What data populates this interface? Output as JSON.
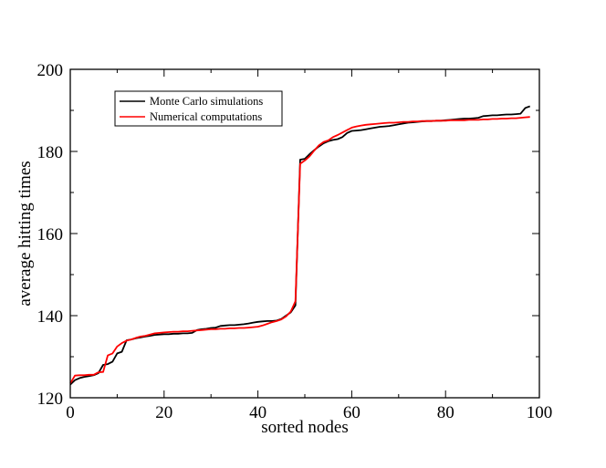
{
  "chart_data": {
    "type": "line",
    "title": "",
    "xlabel": "sorted nodes",
    "ylabel": "average hitting times",
    "xlim": [
      0,
      100
    ],
    "ylim": [
      120,
      200
    ],
    "xticks": [
      0,
      20,
      40,
      60,
      80,
      100
    ],
    "yticks": [
      120,
      140,
      160,
      180,
      200
    ],
    "grid": false,
    "legend_position": "top-left",
    "series": [
      {
        "name": "Monte Carlo simulations",
        "color": "#000000",
        "x": [
          0,
          1,
          2,
          3,
          4,
          5,
          6,
          7,
          8,
          9,
          10,
          11,
          12,
          13,
          14,
          15,
          16,
          17,
          18,
          19,
          20,
          21,
          22,
          23,
          24,
          25,
          26,
          27,
          28,
          29,
          30,
          31,
          32,
          33,
          34,
          35,
          36,
          37,
          38,
          39,
          40,
          41,
          42,
          43,
          44,
          45,
          46,
          47,
          48,
          49,
          50,
          51,
          52,
          53,
          54,
          55,
          56,
          57,
          58,
          59,
          60,
          61,
          62,
          63,
          64,
          65,
          66,
          67,
          68,
          69,
          70,
          71,
          72,
          73,
          74,
          75,
          76,
          77,
          78,
          79,
          80,
          81,
          82,
          83,
          84,
          85,
          86,
          87,
          88,
          89,
          90,
          91,
          92,
          93,
          94,
          95,
          96,
          97,
          98
        ],
        "y": [
          123.2,
          124.3,
          124.8,
          125.1,
          125.3,
          125.5,
          126.0,
          128.0,
          128.2,
          128.8,
          130.8,
          131.2,
          134.0,
          134.2,
          134.5,
          134.7,
          134.9,
          135.1,
          135.3,
          135.4,
          135.5,
          135.5,
          135.6,
          135.6,
          135.7,
          135.7,
          135.8,
          136.5,
          136.7,
          136.8,
          137.0,
          137.1,
          137.5,
          137.6,
          137.7,
          137.7,
          137.8,
          137.9,
          138.1,
          138.3,
          138.5,
          138.6,
          138.7,
          138.7,
          138.8,
          139.2,
          140.0,
          140.8,
          142.5,
          178.0,
          178.2,
          179.3,
          180.3,
          181.2,
          182.0,
          182.5,
          182.8,
          183.0,
          183.5,
          184.5,
          185.0,
          185.1,
          185.2,
          185.4,
          185.6,
          185.8,
          186.0,
          186.1,
          186.2,
          186.4,
          186.6,
          186.8,
          187.0,
          187.1,
          187.2,
          187.3,
          187.4,
          187.4,
          187.5,
          187.5,
          187.6,
          187.7,
          187.8,
          187.9,
          188.0,
          188.0,
          188.1,
          188.2,
          188.6,
          188.7,
          188.8,
          188.8,
          188.9,
          189.0,
          189.0,
          189.1,
          189.2,
          190.6,
          191.0
        ]
      },
      {
        "name": "Numerical computations",
        "color": "#ff0000",
        "x": [
          0,
          1,
          2,
          3,
          4,
          5,
          6,
          7,
          8,
          9,
          10,
          11,
          12,
          13,
          14,
          15,
          16,
          17,
          18,
          19,
          20,
          21,
          22,
          23,
          24,
          25,
          26,
          27,
          28,
          29,
          30,
          31,
          32,
          33,
          34,
          35,
          36,
          37,
          38,
          39,
          40,
          41,
          42,
          43,
          44,
          45,
          46,
          47,
          48,
          49,
          50,
          51,
          52,
          53,
          54,
          55,
          56,
          57,
          58,
          59,
          60,
          61,
          62,
          63,
          64,
          65,
          66,
          67,
          68,
          69,
          70,
          71,
          72,
          73,
          74,
          75,
          76,
          77,
          78,
          79,
          80,
          81,
          82,
          83,
          84,
          85,
          86,
          87,
          88,
          89,
          90,
          91,
          92,
          93,
          94,
          95,
          96,
          97,
          98
        ],
        "y": [
          123.5,
          125.4,
          125.5,
          125.5,
          125.6,
          125.6,
          126.2,
          126.3,
          130.3,
          130.8,
          132.5,
          133.3,
          133.9,
          134.2,
          134.6,
          134.9,
          135.1,
          135.4,
          135.7,
          135.8,
          135.9,
          136.0,
          136.1,
          136.1,
          136.2,
          136.2,
          136.3,
          136.4,
          136.5,
          136.6,
          136.7,
          136.7,
          136.8,
          136.8,
          136.9,
          136.9,
          137.0,
          137.0,
          137.1,
          137.2,
          137.3,
          137.6,
          138.0,
          138.4,
          138.7,
          139.1,
          139.8,
          141.0,
          143.5,
          177.0,
          177.8,
          178.8,
          180.2,
          181.5,
          182.3,
          182.7,
          183.5,
          184.0,
          184.6,
          185.2,
          185.8,
          186.1,
          186.3,
          186.5,
          186.6,
          186.7,
          186.8,
          186.9,
          187.0,
          187.0,
          187.1,
          187.2,
          187.2,
          187.3,
          187.3,
          187.4,
          187.4,
          187.4,
          187.5,
          187.5,
          187.5,
          187.6,
          187.6,
          187.6,
          187.6,
          187.7,
          187.7,
          187.7,
          187.8,
          187.8,
          187.9,
          187.9,
          188.0,
          188.0,
          188.1,
          188.1,
          188.2,
          188.3,
          188.4
        ]
      }
    ]
  }
}
